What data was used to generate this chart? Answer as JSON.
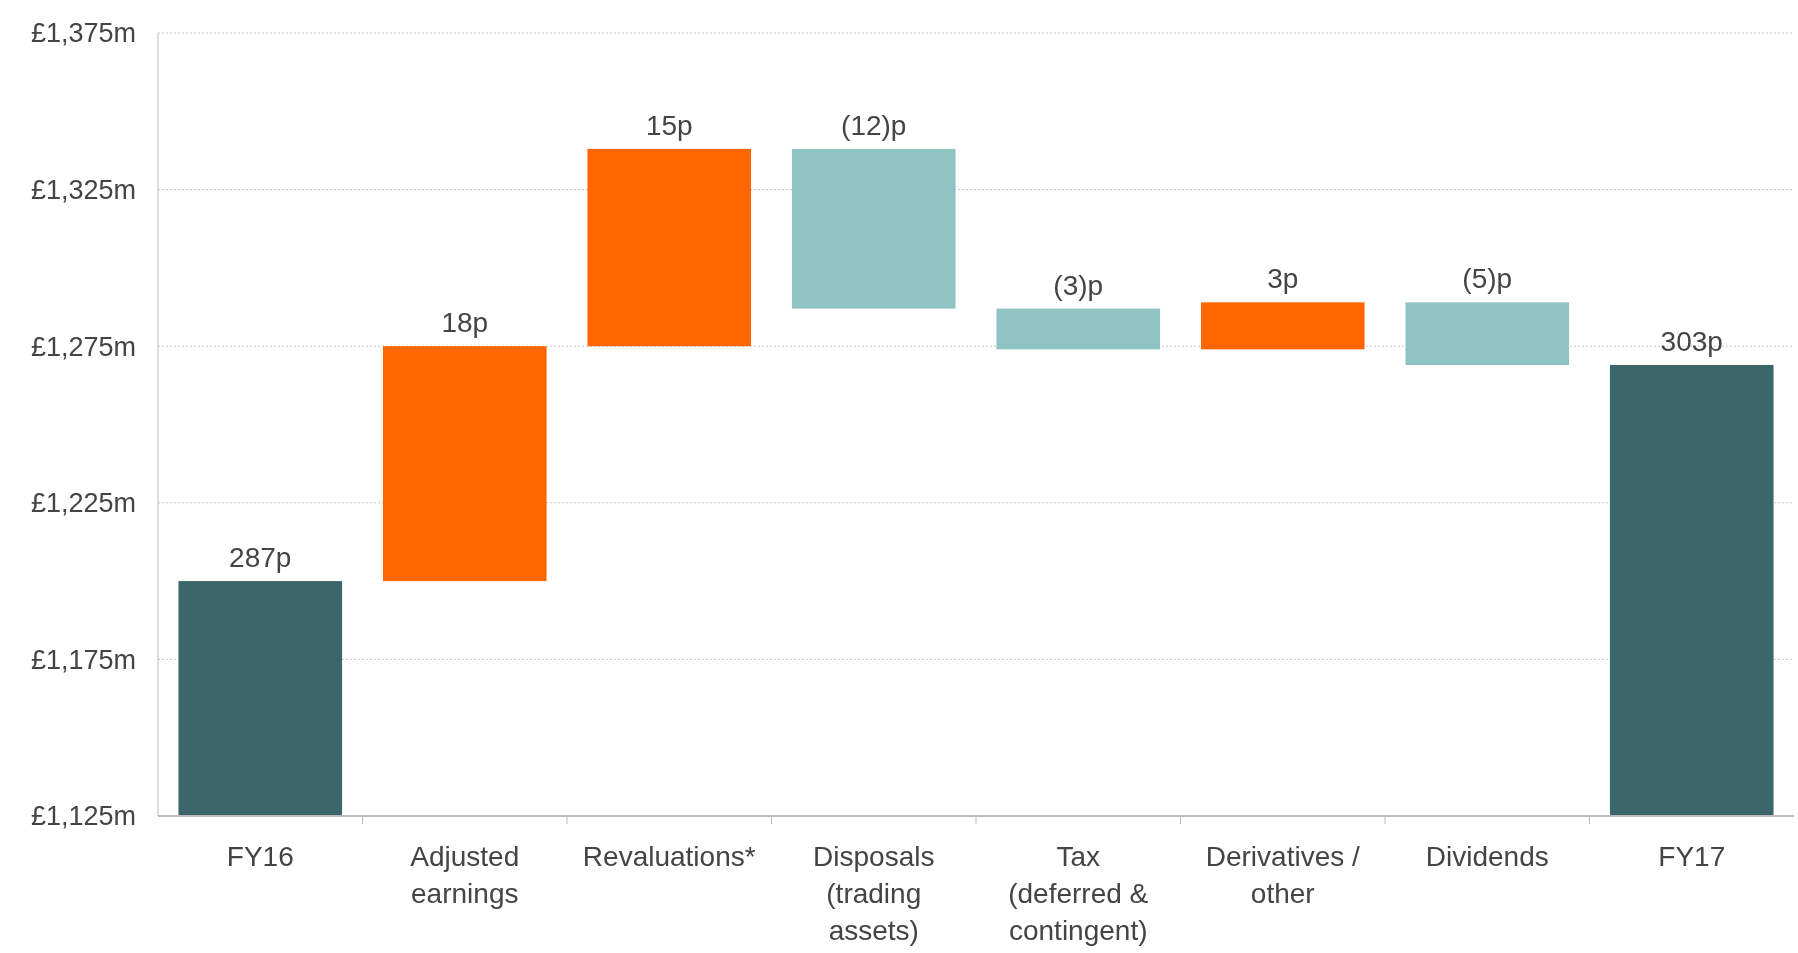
{
  "chart_data": {
    "type": "bar",
    "categories": [
      "FY16",
      "Adjusted\nearnings",
      "Revaluations*",
      "Disposals\n(trading\nassets)",
      "Tax\n(deferred &\ncontingent)",
      "Derivatives /\nother",
      "Dividends",
      "FY17"
    ],
    "values": [
      75,
      75,
      63,
      -51,
      -13,
      15,
      -20,
      144
    ],
    "base": [
      1125,
      1200,
      1275,
      1338,
      1287,
      1274,
      1289,
      1125
    ],
    "colors": [
      "#3b6569",
      "#ff6600",
      "#ff6600",
      "#8fc3c4",
      "#8fc3c4",
      "#ff6600",
      "#8fc3c4",
      "#3b6569"
    ],
    "annotations": [
      {
        "text": "287p",
        "x": "FY16",
        "y": 1200
      },
      {
        "text": "18p",
        "x": "Adjusted\nearnings",
        "y": 1275
      },
      {
        "text": "15p",
        "x": "Revaluations*",
        "y": 1338
      },
      {
        "text": "(12)p",
        "x": "Disposals\n(trading\nassets)",
        "y": 1338
      },
      {
        "text": "(3)p",
        "x": "Tax\n(deferred &\ncontingent)",
        "y": 1287
      },
      {
        "text": "3p",
        "x": "Derivatives /\nother",
        "y": 1289
      },
      {
        "text": "(5)p",
        "x": "Dividends",
        "y": 1289
      },
      {
        "text": "303p",
        "x": "FY17",
        "y": 1269
      }
    ],
    "ylim": [
      1125,
      1375
    ],
    "yticks": [
      {
        "value": 1125,
        "label": "£1,125m"
      },
      {
        "value": 1175,
        "label": "£1,175m"
      },
      {
        "value": 1225,
        "label": "£1,225m"
      },
      {
        "value": 1275,
        "label": "£1,275m"
      },
      {
        "value": 1325,
        "label": "£1,325m"
      },
      {
        "value": 1375,
        "label": "£1,375m"
      }
    ],
    "grid": "y"
  }
}
